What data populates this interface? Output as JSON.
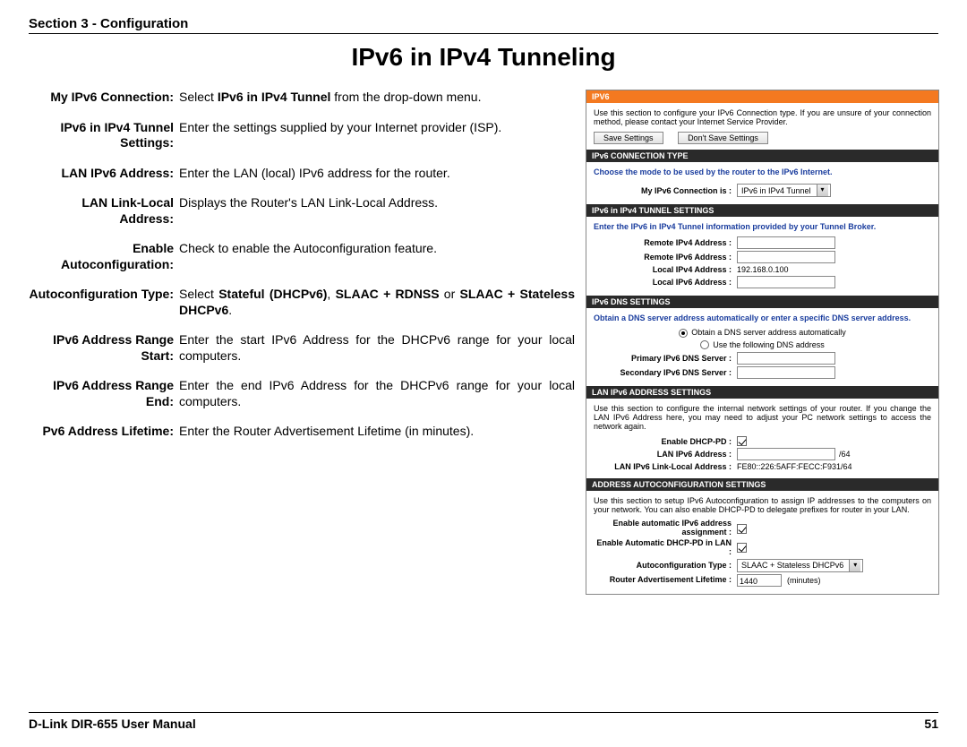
{
  "header": {
    "section": "Section 3 - Configuration"
  },
  "title": "IPv6 in IPv4 Tunneling",
  "defs": [
    {
      "label": "My IPv6 Connection:",
      "desc": "Select <b>IPv6 in IPv4 Tunnel</b> from the drop-down menu."
    },
    {
      "label": "IPv6 in IPv4 Tunnel Settings:",
      "desc": "Enter the settings supplied by your Internet provider (ISP)."
    },
    {
      "label": "LAN IPv6 Address:",
      "desc": "Enter the LAN (local) IPv6 address for the router."
    },
    {
      "label": "LAN Link-Local Address:",
      "desc": "Displays the Router's LAN Link-Local Address."
    },
    {
      "label": "Enable Autoconfiguration:",
      "desc": "Check to enable the Autoconfiguration feature."
    },
    {
      "label": "Autoconfiguration Type:",
      "desc": "Select <b>Stateful (DHCPv6)</b>, <b>SLAAC + RDNSS</b> or <b>SLAAC + Stateless DHCPv6</b>."
    },
    {
      "label": "IPv6 Address Range Start:",
      "desc": "Enter the start IPv6 Address for the DHCPv6 range for your local computers."
    },
    {
      "label": "IPv6 Address Range End:",
      "desc": "Enter the end IPv6 Address for the DHCPv6 range for your local computers."
    },
    {
      "label": "Pv6 Address Lifetime:",
      "desc": "Enter the Router Advertisement Lifetime (in minutes)."
    }
  ],
  "panel": {
    "ipv6": {
      "title": "IPV6",
      "desc": "Use this section to configure your IPv6 Connection type. If you are unsure of your connection method, please contact your Internet Service Provider.",
      "save": "Save Settings",
      "dont_save": "Don't Save Settings"
    },
    "conn_type": {
      "title": "IPv6 CONNECTION TYPE",
      "prompt": "Choose the mode to be used by the router to the IPv6 Internet.",
      "label": "My IPv6 Connection is :",
      "value": "IPv6 in IPv4 Tunnel"
    },
    "tunnel": {
      "title": "IPv6 in IPv4 TUNNEL SETTINGS",
      "prompt": "Enter the IPv6 in IPv4 Tunnel information provided by your Tunnel Broker.",
      "rows": [
        {
          "label": "Remote IPv4 Address :",
          "value": ""
        },
        {
          "label": "Remote IPv6 Address :",
          "value": ""
        },
        {
          "label": "Local IPv4 Address :",
          "value": "192.168.0.100"
        },
        {
          "label": "Local IPv6 Address :",
          "value": ""
        }
      ]
    },
    "dns": {
      "title": "IPv6 DNS SETTINGS",
      "prompt": "Obtain a DNS server address automatically or enter a specific DNS server address.",
      "opt_auto": "Obtain a DNS server address automatically",
      "opt_manual": "Use the following DNS address",
      "primary": "Primary IPv6 DNS Server :",
      "secondary": "Secondary IPv6 DNS Server :"
    },
    "lan": {
      "title": "LAN IPv6 ADDRESS SETTINGS",
      "prompt": "Use this section to configure the internal network settings of your router. If you change the LAN IPv6 Address here, you may need to adjust your PC network settings to access the network again.",
      "dhcp_pd": "Enable DHCP-PD :",
      "addr": "LAN IPv6 Address :",
      "addr_suffix": "/64",
      "linklocal_label": "LAN IPv6 Link-Local Address :",
      "linklocal_value": "FE80::226:5AFF:FECC:F931/64"
    },
    "auto": {
      "title": "ADDRESS AUTOCONFIGURATION SETTINGS",
      "prompt": "Use this section to setup IPv6 Autoconfiguration to assign IP addresses to the computers on your network. You can also enable DHCP-PD to delegate prefixes for router in your LAN.",
      "enable_auto": "Enable automatic IPv6 address assignment :",
      "enable_dhcp_pd": "Enable Automatic DHCP-PD in LAN :",
      "autoconf_type_label": "Autoconfiguration Type :",
      "autoconf_type_value": "SLAAC + Stateless DHCPv6",
      "ra_label": "Router Advertisement Lifetime :",
      "ra_value": "1440",
      "ra_unit": "(minutes)"
    }
  },
  "footer": {
    "manual": "D-Link DIR-655 User Manual",
    "page": "51"
  },
  "colors": {
    "orange": "#f47920",
    "dark": "#2a2a2a",
    "blue": "#1a3d9e",
    "rule": "#000000"
  }
}
